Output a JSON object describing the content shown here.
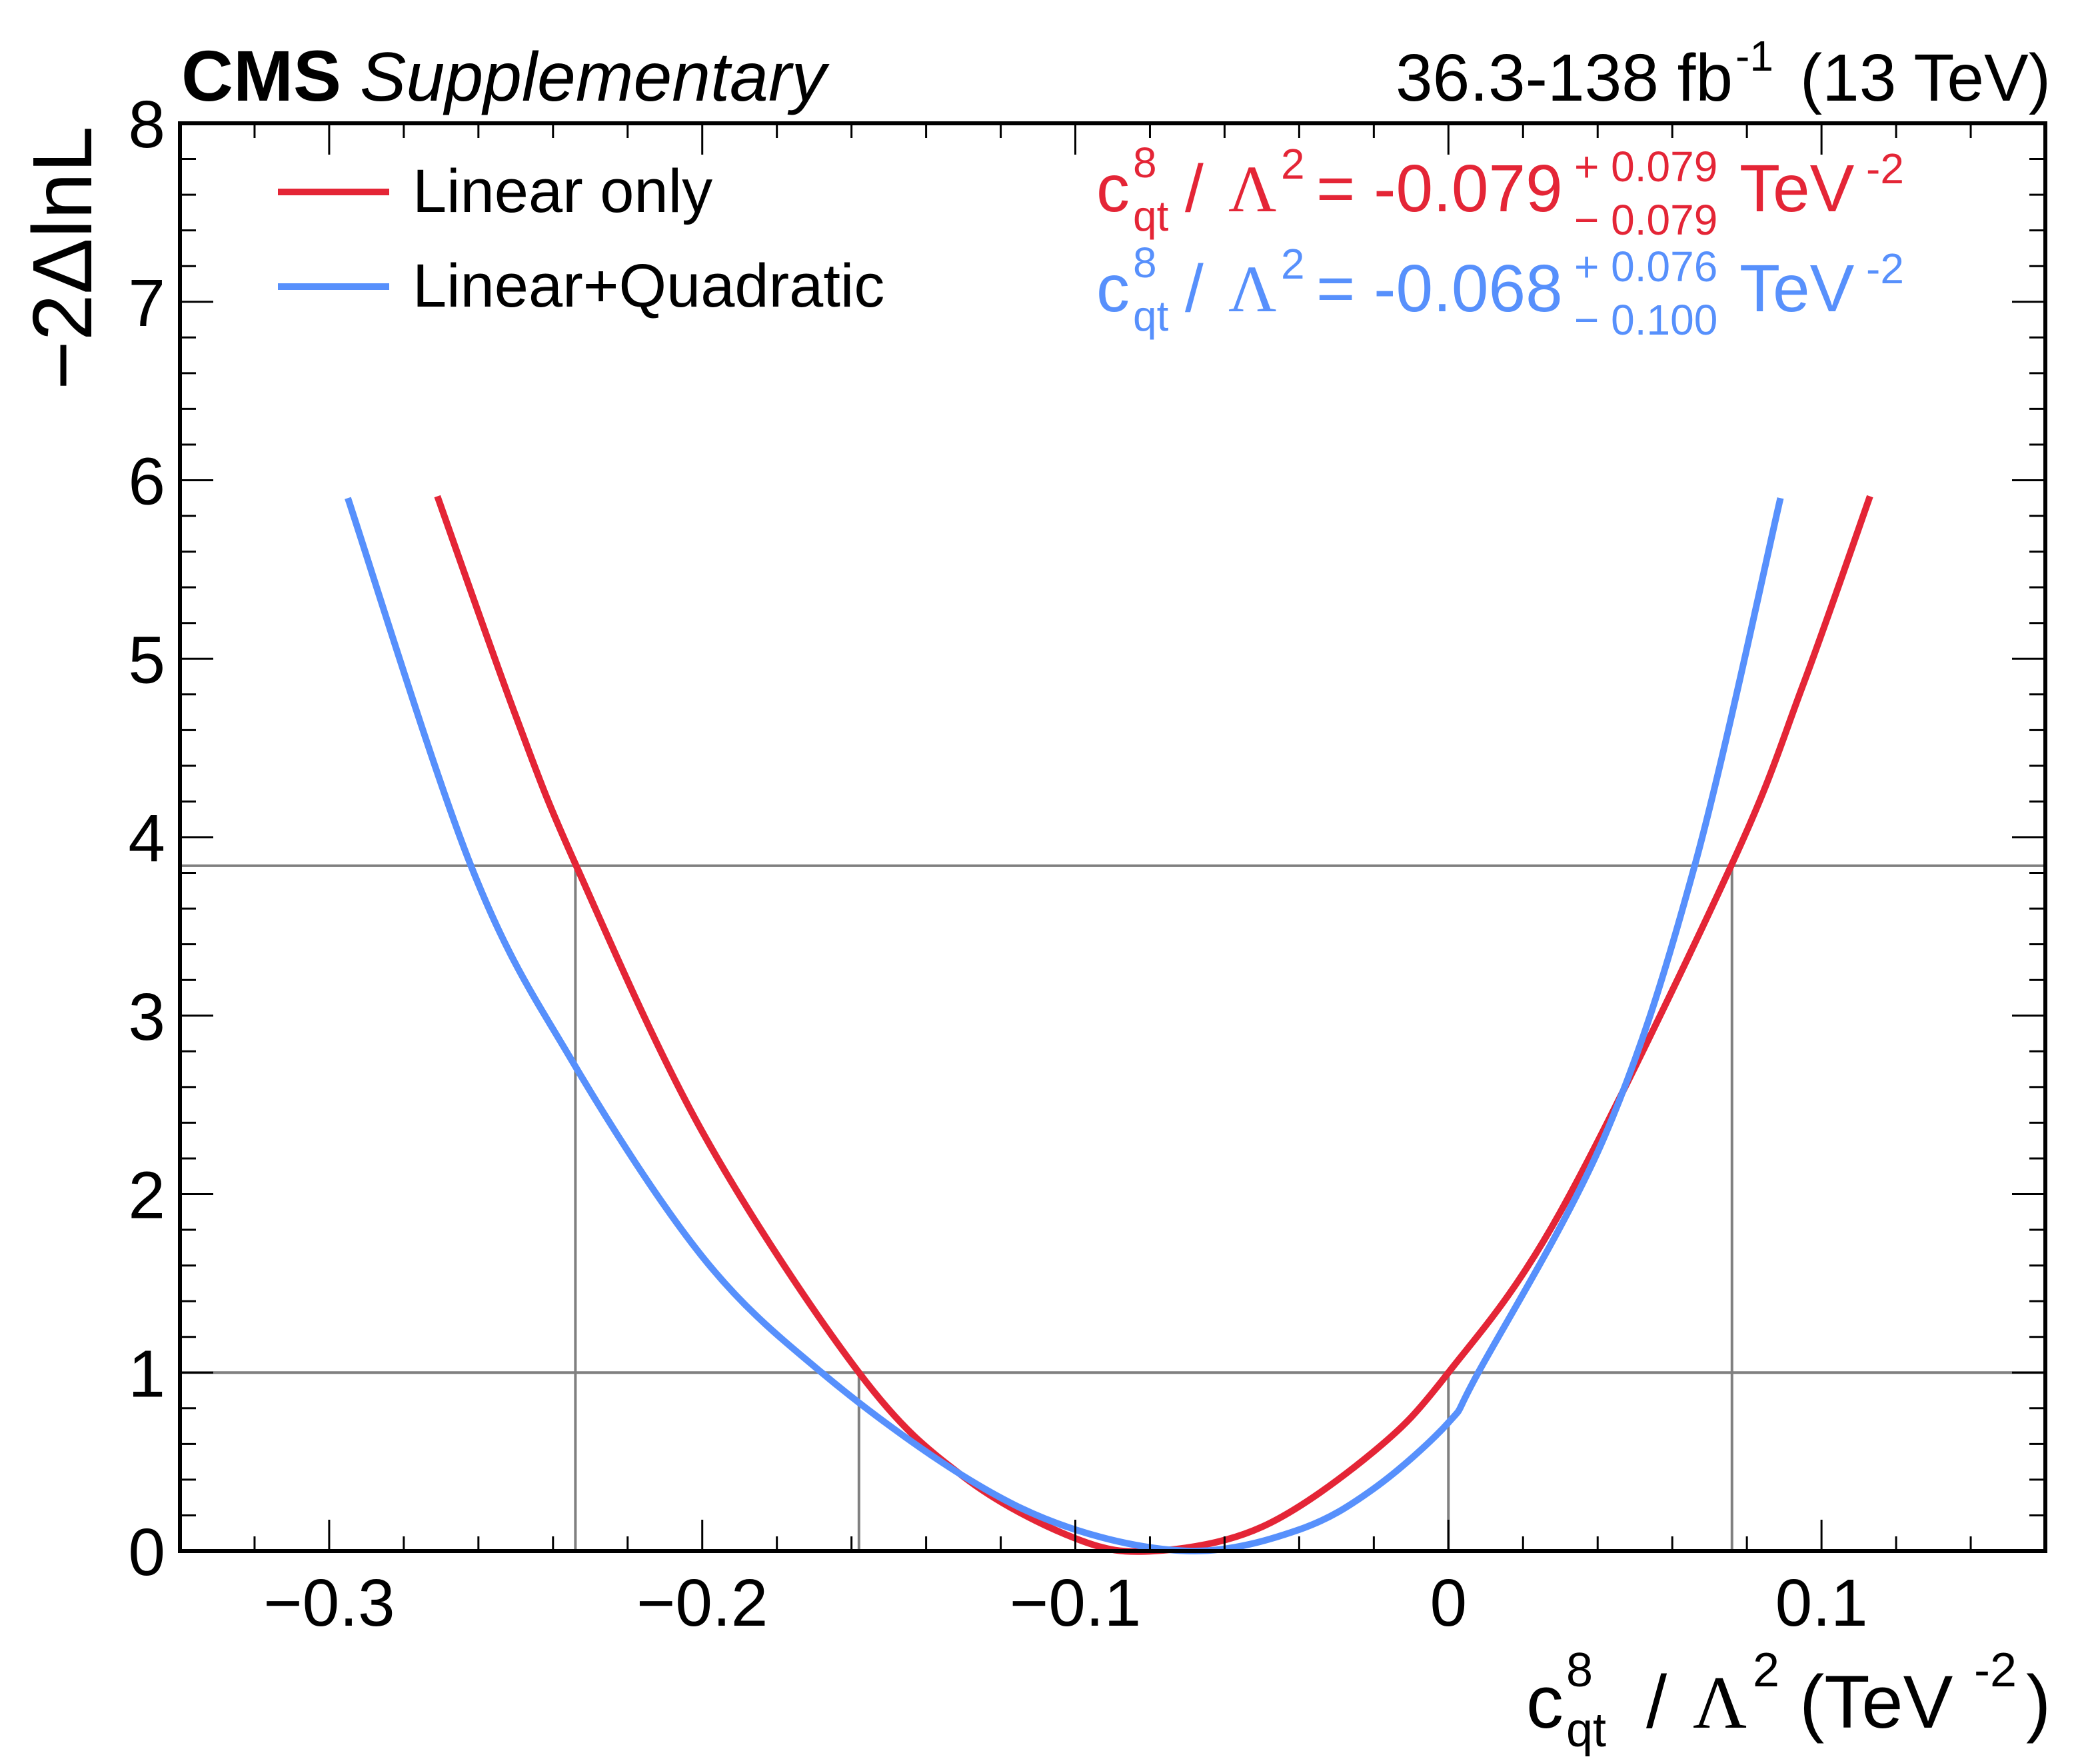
{
  "header": {
    "experiment": "CMS",
    "label": "Supplementary",
    "lumi_text": "36.3-138 fb",
    "lumi_sup": "-1",
    "energy": "(13 TeV)"
  },
  "chart_data": {
    "type": "line",
    "xlabel": {
      "c": "c",
      "sup": "8",
      "sub": "qt",
      "slash": "/",
      "lambda": "Λ",
      "lambda_sup": "2",
      "unit": "(TeV",
      "unit_sup": "-2",
      "close": ")"
    },
    "ylabel": "−2ΔlnL",
    "xlim": [
      -0.34,
      0.16
    ],
    "ylim": [
      0,
      8
    ],
    "x_ticks": [
      -0.3,
      -0.2,
      -0.1,
      0,
      0.1
    ],
    "x_tick_labels": [
      "−0.3",
      "−0.2",
      "−0.1",
      "0",
      "0.1"
    ],
    "y_ticks": [
      0,
      1,
      2,
      3,
      4,
      5,
      6,
      7,
      8
    ],
    "y_tick_labels": [
      "0",
      "1",
      "2",
      "3",
      "4",
      "5",
      "6",
      "7",
      "8"
    ],
    "grid": false,
    "legend_position": "top-left",
    "series": [
      {
        "name": "Linear only",
        "color": "#e42536",
        "points": [
          [
            -0.271,
            5.91
          ],
          [
            -0.25,
            4.68
          ],
          [
            -0.234,
            3.85
          ],
          [
            -0.2,
            2.35
          ],
          [
            -0.158,
            1.0
          ],
          [
            -0.13,
            0.417
          ],
          [
            -0.1,
            0.071
          ],
          [
            -0.079,
            0
          ],
          [
            -0.05,
            0.135
          ],
          [
            -0.02,
            0.558
          ],
          [
            0,
            1.0
          ],
          [
            0.03,
            1.9
          ],
          [
            0.076,
            3.85
          ],
          [
            0.095,
            4.85
          ],
          [
            0.113,
            5.91
          ]
        ],
        "result": {
          "c": "c",
          "sup": "8",
          "sub": "qt",
          "slash": "/",
          "lambda": "Λ",
          "lambda_sup": "2",
          "eq": "= -0.079",
          "err_up": "+ 0.079",
          "err_down": "− 0.079",
          "unit": "TeV",
          "unit_sup": "-2"
        }
      },
      {
        "name": "Linear+Quadratic",
        "color": "#5790fc",
        "points": [
          [
            -0.295,
            5.9
          ],
          [
            -0.262,
            3.84
          ],
          [
            -0.235,
            2.75
          ],
          [
            -0.2,
            1.65
          ],
          [
            -0.168,
            1.0
          ],
          [
            -0.13,
            0.42
          ],
          [
            -0.1,
            0.12
          ],
          [
            -0.068,
            0
          ],
          [
            -0.04,
            0.12
          ],
          [
            -0.02,
            0.35
          ],
          [
            0,
            0.72
          ],
          [
            0.008,
            1.0
          ],
          [
            0.042,
            2.33
          ],
          [
            0.066,
            3.84
          ],
          [
            0.089,
            5.9
          ]
        ],
        "result": {
          "c": "c",
          "sup": "8",
          "sub": "qt",
          "slash": "/",
          "lambda": "Λ",
          "lambda_sup": "2",
          "eq": "= -0.068",
          "err_up": "+ 0.076",
          "err_down": "− 0.100",
          "unit": "TeV",
          "unit_sup": "-2"
        }
      }
    ],
    "reference_lines": {
      "color": "#808080",
      "horizontal": [
        1,
        3.84
      ],
      "vertical": [
        [
          -0.234,
          3.84
        ],
        [
          0.076,
          3.84
        ],
        [
          -0.158,
          1
        ],
        [
          0.0,
          1
        ]
      ]
    }
  }
}
